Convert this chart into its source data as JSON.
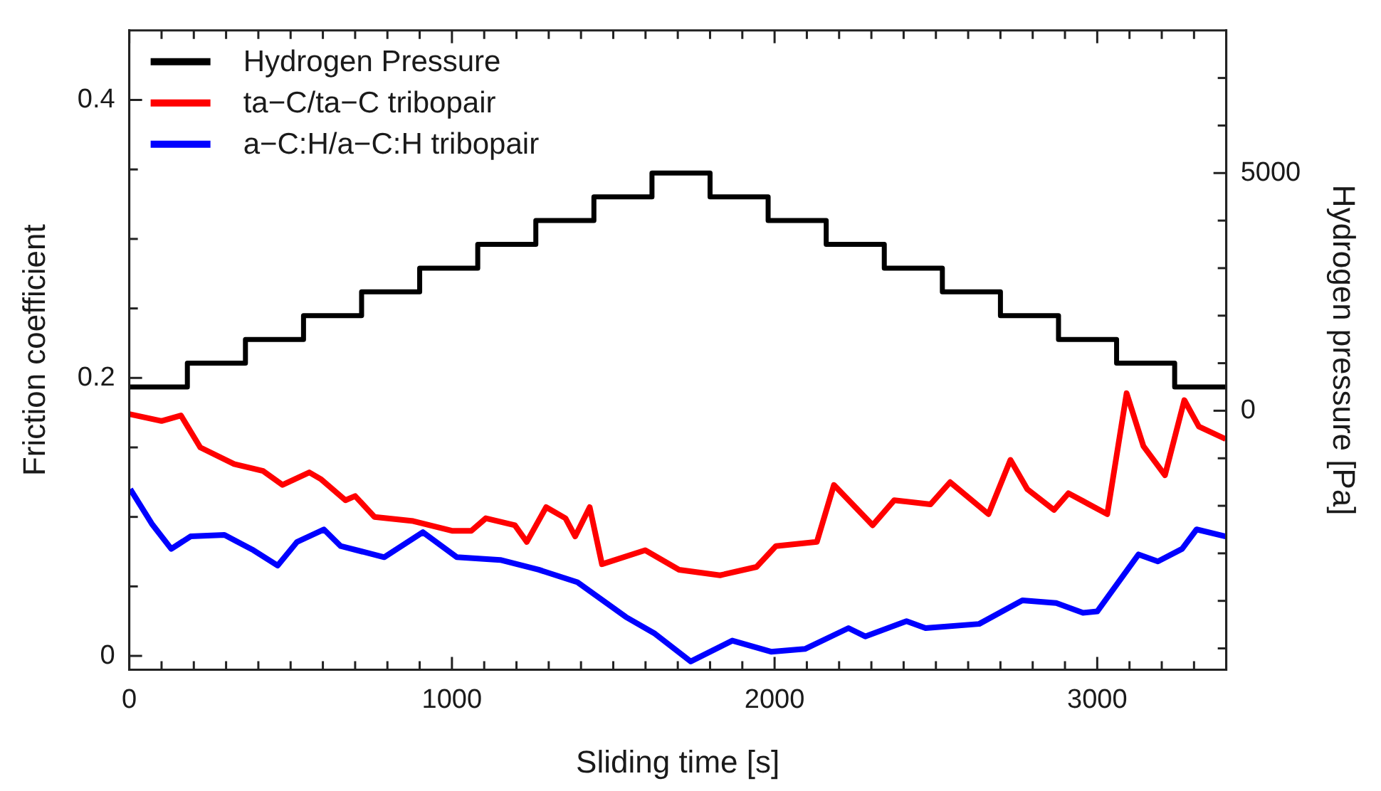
{
  "chart_data": {
    "type": "line",
    "xlabel": "Sliding time [s]",
    "ylabel": "Friction coefficient",
    "y2label": "Hydrogen pressure [Pa]",
    "xlim": [
      0,
      3400
    ],
    "ylim": [
      -0.01,
      0.45
    ],
    "y2lim": [
      -5450,
      8000
    ],
    "xticks": [
      0,
      {
        "value": 100,
        "label": null
      },
      {
        "value": 200,
        "label": null
      },
      {
        "value": 300,
        "label": null
      },
      {
        "value": 400,
        "label": null
      },
      {
        "value": 500,
        "label": null
      },
      {
        "value": 600,
        "label": null
      },
      {
        "value": 700,
        "label": null
      },
      {
        "value": 800,
        "label": null
      },
      {
        "value": 900,
        "label": null
      },
      1000,
      {
        "value": 1100,
        "label": null
      },
      {
        "value": 1200,
        "label": null
      },
      {
        "value": 1300,
        "label": null
      },
      {
        "value": 1400,
        "label": null
      },
      {
        "value": 1500,
        "label": null
      },
      {
        "value": 1600,
        "label": null
      },
      {
        "value": 1700,
        "label": null
      },
      {
        "value": 1800,
        "label": null
      },
      {
        "value": 1900,
        "label": null
      },
      2000,
      {
        "value": 2100,
        "label": null
      },
      {
        "value": 2200,
        "label": null
      },
      {
        "value": 2300,
        "label": null
      },
      {
        "value": 2400,
        "label": null
      },
      {
        "value": 2500,
        "label": null
      },
      {
        "value": 2600,
        "label": null
      },
      {
        "value": 2700,
        "label": null
      },
      {
        "value": 2800,
        "label": null
      },
      {
        "value": 2900,
        "label": null
      },
      3000,
      {
        "value": 3100,
        "label": null
      },
      {
        "value": 3200,
        "label": null
      },
      {
        "value": 3300,
        "label": null
      }
    ],
    "yticks": [
      0,
      {
        "value": 0.05,
        "label": null
      },
      {
        "value": 0.1,
        "label": null
      },
      {
        "value": 0.15,
        "label": null
      },
      0.2,
      {
        "value": 0.25,
        "label": null
      },
      {
        "value": 0.3,
        "label": null
      },
      {
        "value": 0.35,
        "label": null
      },
      0.4
    ],
    "y2ticks": [
      {
        "value": -5000,
        "label": null
      },
      {
        "value": -4000,
        "label": null
      },
      {
        "value": -3000,
        "label": null
      },
      {
        "value": -2000,
        "label": null
      },
      {
        "value": -1000,
        "label": null
      },
      0,
      {
        "value": 1000,
        "label": null
      },
      {
        "value": 2000,
        "label": null
      },
      {
        "value": 3000,
        "label": null
      },
      {
        "value": 4000,
        "label": null
      },
      5000,
      {
        "value": 6000,
        "label": null
      },
      {
        "value": 7000,
        "label": null
      }
    ],
    "grid": false,
    "legend": "top left",
    "marker": "none",
    "line_style": "solid",
    "series": [
      {
        "name": "Hydrogen Pressure",
        "type": "step",
        "axis": "y2",
        "color": "#000000",
        "x": [
          0,
          180,
          360,
          540,
          720,
          900,
          1080,
          1260,
          1440,
          1620,
          1800,
          1980,
          2160,
          2340,
          2520,
          2700,
          2880,
          3060,
          3240,
          3400
        ],
        "values": [
          500,
          1000,
          1500,
          2000,
          2500,
          3000,
          3500,
          4000,
          4500,
          5000,
          4500,
          4000,
          3500,
          3000,
          2500,
          2000,
          1500,
          1000,
          500,
          500
        ]
      },
      {
        "name": "ta−C/ta−C tribopair",
        "color": "#ff0000",
        "x": [
          0,
          100,
          160,
          220,
          325,
          415,
          475,
          558,
          595,
          670,
          700,
          760,
          880,
          1000,
          1060,
          1105,
          1195,
          1232,
          1292,
          1352,
          1382,
          1427,
          1465,
          1599,
          1704,
          1831,
          1944,
          2004,
          2131,
          2184,
          2304,
          2371,
          2483,
          2544,
          2663,
          2731,
          2783,
          2866,
          2911,
          3031,
          3091,
          3143,
          3210,
          3270,
          3315,
          3398
        ],
        "values": [
          0.174,
          0.169,
          0.173,
          0.15,
          0.138,
          0.133,
          0.123,
          0.132,
          0.127,
          0.112,
          0.115,
          0.1,
          0.097,
          0.09,
          0.09,
          0.099,
          0.094,
          0.082,
          0.107,
          0.099,
          0.086,
          0.107,
          0.066,
          0.076,
          0.062,
          0.058,
          0.064,
          0.079,
          0.082,
          0.123,
          0.094,
          0.112,
          0.109,
          0.125,
          0.102,
          0.141,
          0.12,
          0.105,
          0.117,
          0.102,
          0.189,
          0.151,
          0.13,
          0.184,
          0.165,
          0.156
        ]
      },
      {
        "name": "a−C:H/a−C:H tribopair",
        "color": "#0000ff",
        "x": [
          3,
          70,
          130,
          190,
          295,
          385,
          460,
          520,
          603,
          655,
          790,
          910,
          1015,
          1150,
          1269,
          1389,
          1539,
          1629,
          1740,
          1869,
          1989,
          2094,
          2229,
          2281,
          2409,
          2468,
          2634,
          2768,
          2873,
          2956,
          3000,
          3128,
          3188,
          3263,
          3308,
          3398
        ],
        "values": [
          0.12,
          0.095,
          0.077,
          0.086,
          0.087,
          0.076,
          0.065,
          0.082,
          0.091,
          0.079,
          0.071,
          0.089,
          0.071,
          0.069,
          0.062,
          0.053,
          0.028,
          0.016,
          -0.004,
          0.011,
          0.003,
          0.005,
          0.02,
          0.014,
          0.025,
          0.02,
          0.023,
          0.04,
          0.038,
          0.031,
          0.032,
          0.073,
          0.068,
          0.077,
          0.091,
          0.086
        ]
      }
    ]
  }
}
